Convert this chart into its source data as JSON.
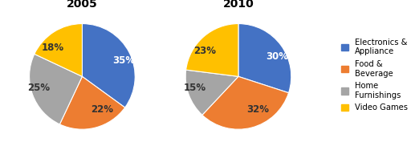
{
  "chart2005": {
    "title": "2005",
    "values": [
      35,
      22,
      25,
      18
    ],
    "labels": [
      "35%",
      "22%",
      "25%",
      "18%"
    ],
    "startangle": 90
  },
  "chart2010": {
    "title": "2010",
    "values": [
      30,
      32,
      15,
      23
    ],
    "labels": [
      "30%",
      "32%",
      "15%",
      "23%"
    ],
    "startangle": 90
  },
  "colors": [
    "#4472C4",
    "#ED7D31",
    "#A5A5A5",
    "#FFC000"
  ],
  "label_colors_2005": [
    "white",
    "#333333",
    "#333333",
    "#333333"
  ],
  "label_colors_2010": [
    "white",
    "#333333",
    "#333333",
    "#333333"
  ],
  "legend_labels": [
    "Electronics &\nAppliance",
    "Food &\nBeverage",
    "Home\nFurnishings",
    "Video Games"
  ],
  "label_fontsize": 8.5,
  "title_fontsize": 10,
  "background_color": "#ffffff"
}
